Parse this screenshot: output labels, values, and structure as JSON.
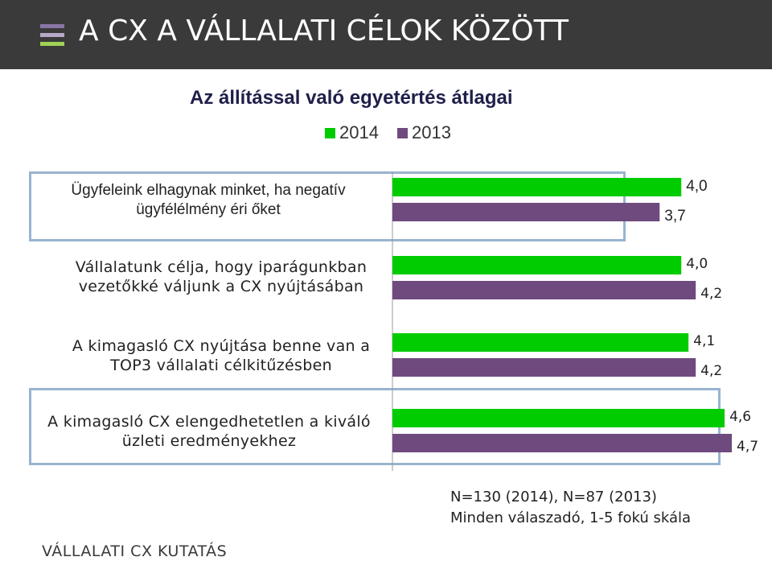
{
  "header": {
    "title": "A CX A VÁLLALATI CÉLOK KÖZÖTT",
    "icon": "menu-icon"
  },
  "chart_data": {
    "type": "bar",
    "orientation": "horizontal",
    "title": "Az állítással való egyetértés átlagai",
    "categories": [
      "Ügyfeleink elhagynak minket, ha negatív ügyfélélmény éri őket",
      "Vállalatunk célja, hogy iparágunkban vezetőkké váljunk a CX nyújtásában",
      "A kimagasló CX nyújtása benne van a TOP3 vállalati célkitűzésben",
      "A kimagasló CX elengedhetetlen a kiváló üzleti eredményekhez"
    ],
    "series": [
      {
        "name": "2014",
        "color": "#00cc00",
        "values": [
          4.0,
          4.0,
          4.1,
          4.6
        ],
        "labels": [
          "4,0",
          "4,0",
          "4,1",
          "4,6"
        ]
      },
      {
        "name": "2013",
        "color": "#6f4a7e",
        "values": [
          3.7,
          4.2,
          4.2,
          4.7
        ],
        "labels": [
          "3,7",
          "4,2",
          "4,2",
          "4,7"
        ]
      }
    ],
    "legend": "top",
    "grid": false
  },
  "notes": {
    "line1": "N=130 (2014), N=87 (2013)",
    "line2": "Minden válaszadó, 1-5 fokú skála"
  },
  "footer": {
    "text": "VÁLLALATI CX KUTATÁS"
  }
}
